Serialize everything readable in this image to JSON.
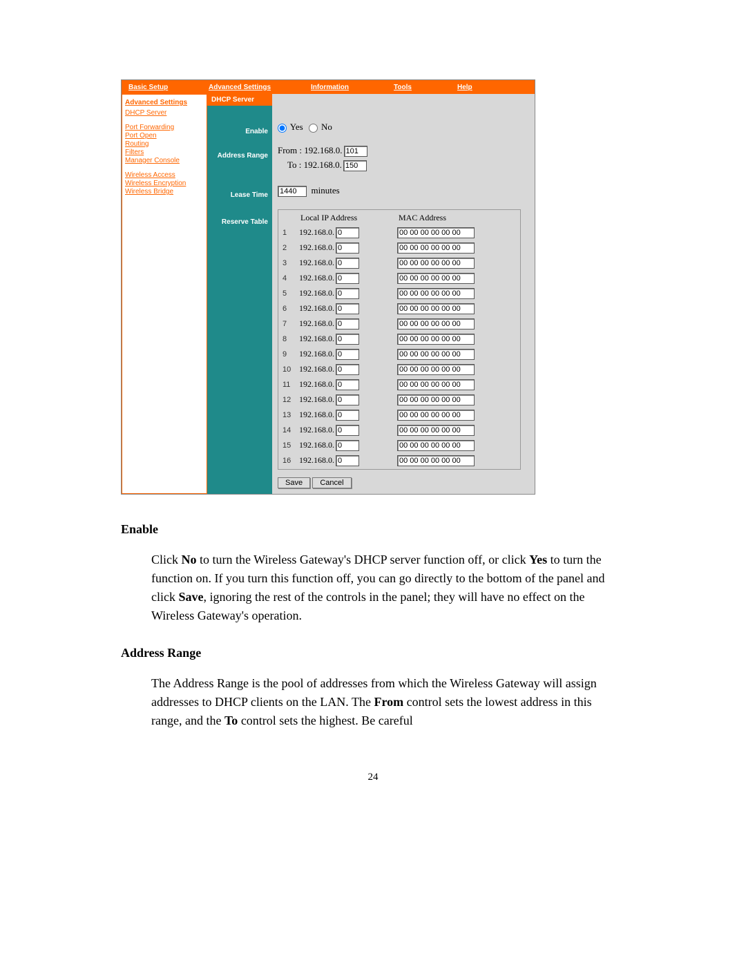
{
  "colors": {
    "accent": "#ff6600",
    "teal": "#1f8a8a",
    "panel": "#d8d8d8"
  },
  "topnav": {
    "basic": "Basic Setup",
    "adv": "Advanced Settings",
    "info": "Information",
    "tools": "Tools",
    "help": "Help"
  },
  "sidebar": {
    "header": "Advanced Settings",
    "items": [
      "DHCP Server",
      "Port Forwarding",
      "Port Open",
      "Routing",
      "Filters",
      "Manager Console",
      "Wireless Access",
      "Wireless Encryption",
      "Wireless Bridge"
    ]
  },
  "section": {
    "title": "DHCP Server",
    "labels": {
      "enable": "Enable",
      "address_range": "Address Range",
      "lease_time": "Lease Time",
      "reserve_table": "Reserve Table"
    }
  },
  "enable": {
    "yes": "Yes",
    "no": "No",
    "selected": "yes"
  },
  "address_range": {
    "from_label": "From",
    "to_label": "To",
    "prefix": "192.168.0.",
    "from": "101",
    "to": "150"
  },
  "lease": {
    "value": "1440",
    "unit": "minutes"
  },
  "reserve": {
    "headers": {
      "ip": "Local IP Address",
      "mac": "MAC Address"
    },
    "ip_prefix": "192.168.0.",
    "rows": [
      {
        "n": "1",
        "ip": "0",
        "mac": "00 00 00 00 00 00"
      },
      {
        "n": "2",
        "ip": "0",
        "mac": "00 00 00 00 00 00"
      },
      {
        "n": "3",
        "ip": "0",
        "mac": "00 00 00 00 00 00"
      },
      {
        "n": "4",
        "ip": "0",
        "mac": "00 00 00 00 00 00"
      },
      {
        "n": "5",
        "ip": "0",
        "mac": "00 00 00 00 00 00"
      },
      {
        "n": "6",
        "ip": "0",
        "mac": "00 00 00 00 00 00"
      },
      {
        "n": "7",
        "ip": "0",
        "mac": "00 00 00 00 00 00"
      },
      {
        "n": "8",
        "ip": "0",
        "mac": "00 00 00 00 00 00"
      },
      {
        "n": "9",
        "ip": "0",
        "mac": "00 00 00 00 00 00"
      },
      {
        "n": "10",
        "ip": "0",
        "mac": "00 00 00 00 00 00"
      },
      {
        "n": "11",
        "ip": "0",
        "mac": "00 00 00 00 00 00"
      },
      {
        "n": "12",
        "ip": "0",
        "mac": "00 00 00 00 00 00"
      },
      {
        "n": "13",
        "ip": "0",
        "mac": "00 00 00 00 00 00"
      },
      {
        "n": "14",
        "ip": "0",
        "mac": "00 00 00 00 00 00"
      },
      {
        "n": "15",
        "ip": "0",
        "mac": "00 00 00 00 00 00"
      },
      {
        "n": "16",
        "ip": "0",
        "mac": "00 00 00 00 00 00"
      }
    ]
  },
  "buttons": {
    "save": "Save",
    "cancel": "Cancel"
  },
  "doc": {
    "h1": "Enable",
    "p1a": "Click ",
    "p1b": "No",
    "p1c": " to turn the Wireless Gateway's DHCP server function off, or click ",
    "p1d": "Yes",
    "p1e": " to turn the function on. If you turn this function off, you can go directly to the bottom of the panel and click ",
    "p1f": "Save",
    "p1g": ", ignoring the rest of the controls in the panel; they will have no effect on the Wireless Gateway's operation.",
    "h2": "Address Range",
    "p2a": "The Address Range is the pool of addresses from which the Wireless Gateway will assign addresses to DHCP clients on the LAN. The ",
    "p2b": "From",
    "p2c": " control sets the lowest address in this range, and the ",
    "p2d": "To",
    "p2e": " control sets the highest. Be careful"
  },
  "page_number": "24"
}
